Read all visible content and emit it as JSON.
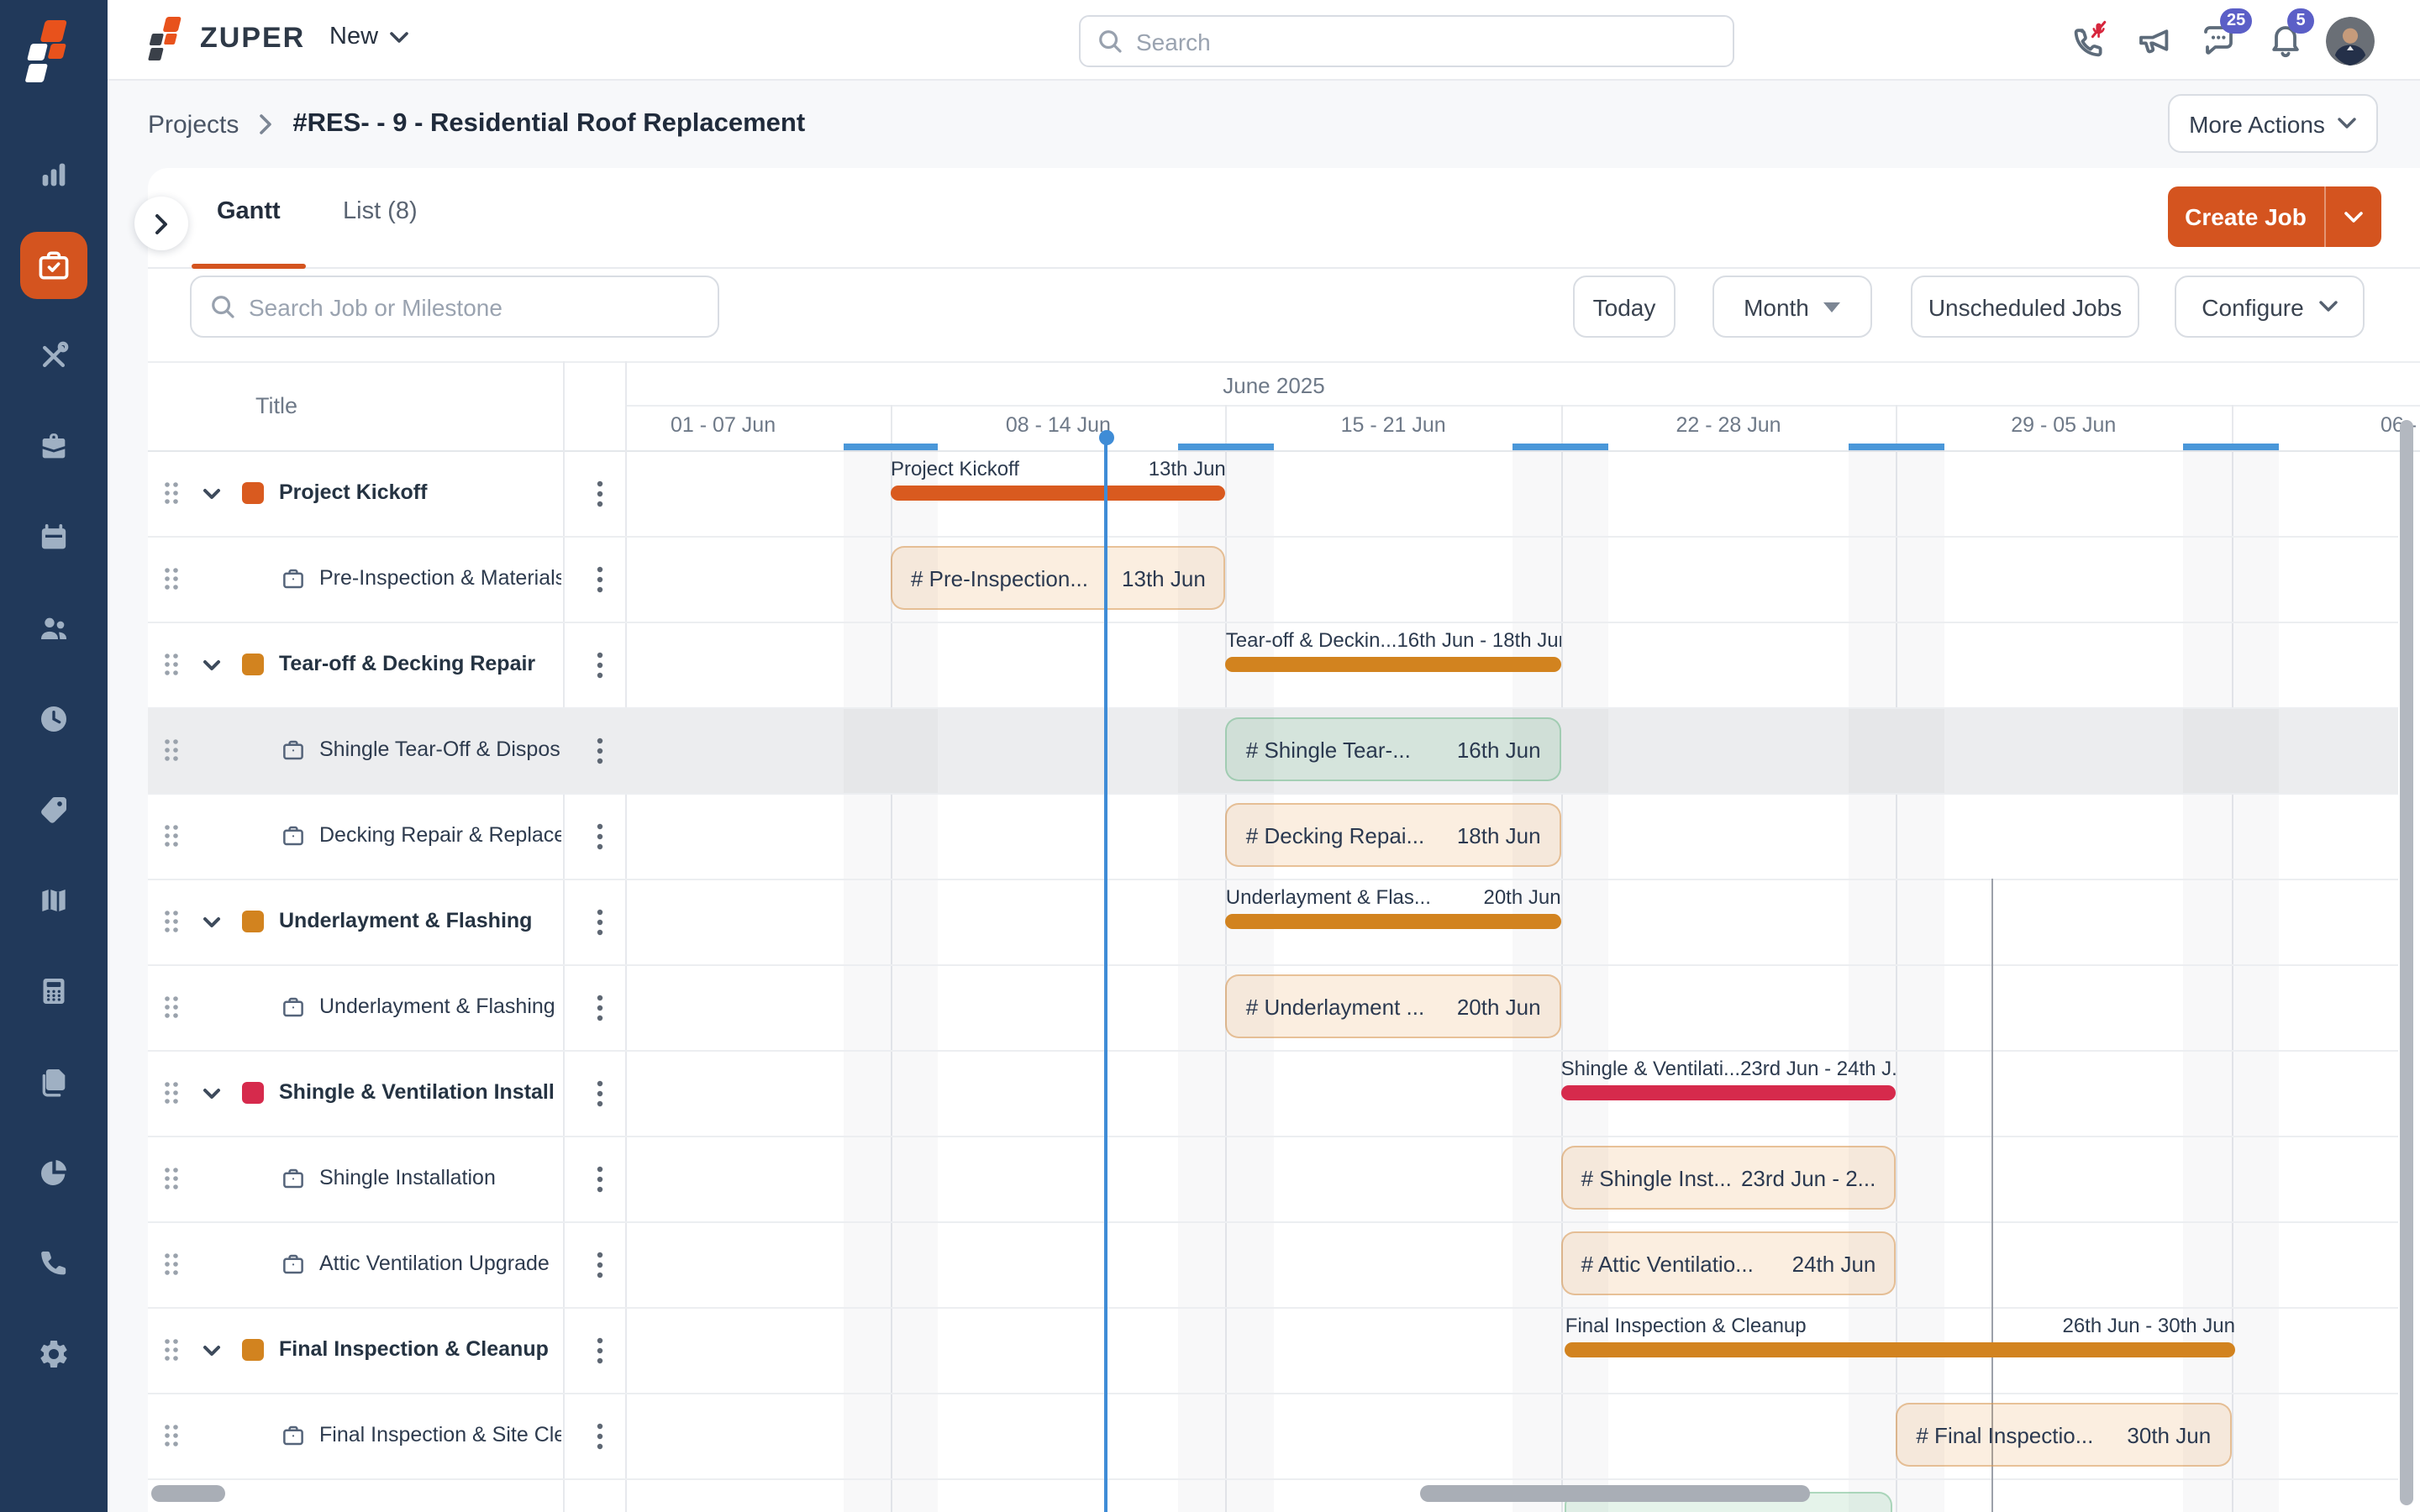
{
  "brand": "ZUPER",
  "topbar": {
    "new_label": "New",
    "search_placeholder": "Search",
    "chat_badge": "25",
    "bell_badge": "5"
  },
  "breadcrumb": {
    "root": "Projects",
    "current": "#RES- - 9 - Residential Roof Replacement"
  },
  "header_actions": {
    "more_actions": "More Actions",
    "create_job": "Create Job"
  },
  "tabs": {
    "gantt": "Gantt",
    "list": "List (8)"
  },
  "toolbar": {
    "search_placeholder": "Search Job or Milestone",
    "today": "Today",
    "view_mode": "Month",
    "unscheduled": "Unscheduled Jobs",
    "configure": "Configure"
  },
  "colors": {
    "accent": "#D4541F",
    "milestone_orange": "#D95A1F",
    "milestone_amber": "#D2831F",
    "milestone_red": "#D62A4C",
    "today_blue": "#3F8CD6",
    "badge_indigo": "#5B5FC7",
    "sidebar_navy": "#21395A"
  },
  "sidebar": {
    "items": [
      {
        "name": "dashboard",
        "icon": "bar-chart",
        "active": false
      },
      {
        "name": "projects",
        "icon": "projects",
        "active": true
      },
      {
        "name": "dispatch",
        "icon": "tools",
        "active": false
      },
      {
        "name": "jobs",
        "icon": "briefcase",
        "active": false
      },
      {
        "name": "calendar",
        "icon": "calendar",
        "active": false
      },
      {
        "name": "teams",
        "icon": "users",
        "active": false
      },
      {
        "name": "timesheets",
        "icon": "clock",
        "active": false
      },
      {
        "name": "tags",
        "icon": "tag",
        "active": false
      },
      {
        "name": "map",
        "icon": "map",
        "active": false
      },
      {
        "name": "invoices",
        "icon": "calculator",
        "active": false
      },
      {
        "name": "documents",
        "icon": "documents",
        "active": false
      },
      {
        "name": "reports",
        "icon": "pie-chart",
        "active": false
      },
      {
        "name": "calls",
        "icon": "phone",
        "active": false
      },
      {
        "name": "settings",
        "icon": "gear",
        "active": false
      }
    ]
  },
  "gantt": {
    "month_label": "June 2025",
    "title_header": "Title",
    "weeks": [
      "01 - 07 Jun",
      "08 - 14 Jun",
      "15 - 21 Jun",
      "22 - 28 Jun",
      "29 - 05 Jun",
      "06 -"
    ],
    "today_col": 1.642,
    "month_boundary_col": 4.286,
    "rows": [
      {
        "type": "milestone",
        "title": "Project Kickoff",
        "color": "orange",
        "bar": {
          "label": "Project Kickoff",
          "date": "13th Jun",
          "col_start": 1,
          "col_end": 2
        }
      },
      {
        "type": "job",
        "title": "Pre-Inspection & Materials",
        "bar": {
          "label": "# Pre-Inspection...",
          "date": "13th Jun",
          "variant": "peach",
          "col_start": 1,
          "col_end": 2
        }
      },
      {
        "type": "milestone",
        "title": "Tear-off & Decking Repair",
        "color": "amber",
        "bar": {
          "label": "Tear-off & Deckin...",
          "date": "16th Jun - 18th Jun",
          "col_start": 2,
          "col_end": 3
        }
      },
      {
        "type": "job",
        "title": "Shingle Tear-Off & Dispos",
        "selected": true,
        "bar": {
          "label": "# Shingle Tear-...",
          "date": "16th Jun",
          "variant": "green",
          "col_start": 2,
          "col_end": 3
        }
      },
      {
        "type": "job",
        "title": "Decking Repair & Replace",
        "bar": {
          "label": "# Decking Repai...",
          "date": "18th Jun",
          "variant": "peach",
          "col_start": 2,
          "col_end": 3
        }
      },
      {
        "type": "milestone",
        "title": "Underlayment & Flashing",
        "color": "amber",
        "bar": {
          "label": "Underlayment & Flas...",
          "date": "20th Jun",
          "col_start": 2,
          "col_end": 3
        }
      },
      {
        "type": "job",
        "title": "Underlayment & Flashing",
        "bar": {
          "label": "# Underlayment ...",
          "date": "20th Jun",
          "variant": "peach",
          "col_start": 2,
          "col_end": 3
        }
      },
      {
        "type": "milestone",
        "title": "Shingle & Ventilation Install",
        "color": "red",
        "bar": {
          "label": "Shingle & Ventilati...",
          "date": "23rd Jun - 24th J...",
          "col_start": 3,
          "col_end": 4
        }
      },
      {
        "type": "job",
        "title": "Shingle Installation",
        "bar": {
          "label": "# Shingle Inst...",
          "date": "23rd Jun - 2...",
          "variant": "peach",
          "col_start": 3,
          "col_end": 4
        }
      },
      {
        "type": "job",
        "title": "Attic Ventilation Upgrade",
        "bar": {
          "label": "# Attic Ventilatio...",
          "date": "24th Jun",
          "variant": "peach",
          "col_start": 3,
          "col_end": 4
        }
      },
      {
        "type": "milestone",
        "title": "Final Inspection & Cleanup",
        "color": "amber",
        "bar": {
          "label": "Final Inspection & Cleanup",
          "date": "26th Jun - 30th Jun",
          "col_start": 3.013,
          "col_end": 5.012
        }
      },
      {
        "type": "job",
        "title": "Final Inspection & Site Cle",
        "bar": {
          "label": "# Final Inspectio...",
          "date": "30th Jun",
          "variant": "peach",
          "col_start": 4,
          "col_end": 5
        }
      },
      {
        "type": "partial_job",
        "bar": {
          "variant": "green",
          "col_start": 3.013,
          "col_end": 3.99
        }
      }
    ]
  }
}
